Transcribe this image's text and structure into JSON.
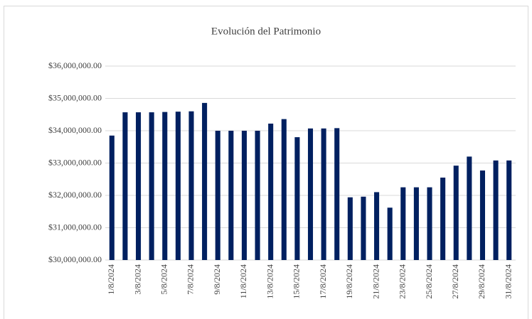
{
  "chart_data": {
    "type": "bar",
    "title": "Evolución del Patrimonio",
    "categories": [
      "1/8/2024",
      null,
      "3/8/2024",
      null,
      "5/8/2024",
      null,
      "7/8/2024",
      null,
      "9/8/2024",
      null,
      "11/8/2024",
      null,
      "13/8/2024",
      null,
      "15/8/2024",
      null,
      "17/8/2024",
      null,
      "19/8/2024",
      null,
      "21/8/2024",
      null,
      "23/8/2024",
      null,
      "25/8/2024",
      null,
      "27/8/2024",
      null,
      "29/8/2024",
      null,
      "31/8/2024"
    ],
    "values": [
      33850000,
      34570000,
      34570000,
      34570000,
      34580000,
      34590000,
      34600000,
      34860000,
      34000000,
      34000000,
      34000000,
      34000000,
      34220000,
      34360000,
      33800000,
      34070000,
      34070000,
      34080000,
      31940000,
      31960000,
      32100000,
      31620000,
      32250000,
      32250000,
      32250000,
      32550000,
      32920000,
      33200000,
      32770000,
      33080000,
      33080000
    ],
    "color": "#002060",
    "ylim": [
      30000000,
      36000000
    ],
    "yticks": [
      {
        "value": 30000000,
        "label": "$30,000,000.00"
      },
      {
        "value": 31000000,
        "label": "$31,000,000.00"
      },
      {
        "value": 32000000,
        "label": "$32,000,000.00"
      },
      {
        "value": 33000000,
        "label": "$33,000,000.00"
      },
      {
        "value": 34000000,
        "label": "$34,000,000.00"
      },
      {
        "value": 35000000,
        "label": "$35,000,000.00"
      },
      {
        "value": 36000000,
        "label": "$36,000,000.00"
      }
    ],
    "grid": true
  }
}
